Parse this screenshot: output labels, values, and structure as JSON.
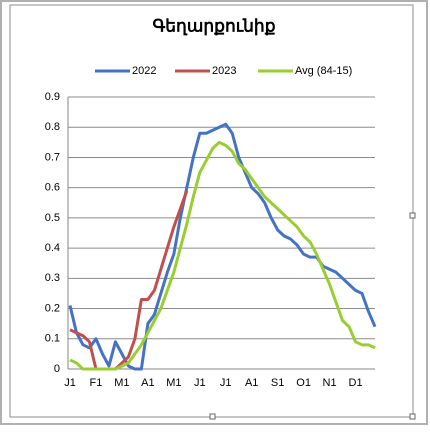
{
  "chart_data": {
    "type": "line",
    "title": "Գեղարքունիք",
    "categories": [
      "J1",
      null,
      null,
      null,
      "F1",
      null,
      null,
      null,
      "M1",
      null,
      null,
      null,
      "A1",
      null,
      null,
      null,
      "M1",
      null,
      null,
      null,
      "J1",
      null,
      null,
      null,
      "J1",
      null,
      null,
      null,
      "A1",
      null,
      null,
      null,
      "S1",
      null,
      null,
      null,
      "O1",
      null,
      null,
      null,
      "N1",
      null,
      null,
      null,
      "D1",
      null,
      null,
      null
    ],
    "series": [
      {
        "name": "2022",
        "color": "#4472c4",
        "values": [
          0.21,
          0.12,
          0.08,
          0.07,
          0.1,
          0.05,
          0.01,
          0.09,
          0.05,
          0.01,
          0.0,
          0.0,
          0.15,
          0.18,
          0.25,
          0.32,
          0.38,
          0.5,
          0.6,
          0.7,
          0.78,
          0.78,
          0.79,
          0.8,
          0.81,
          0.78,
          0.7,
          0.65,
          0.6,
          0.58,
          0.55,
          0.5,
          0.46,
          0.44,
          0.43,
          0.41,
          0.38,
          0.37,
          0.37,
          0.34,
          0.33,
          0.32,
          0.3,
          0.28,
          0.26,
          0.25,
          0.19,
          0.14
        ]
      },
      {
        "name": "2023",
        "color": "#c0504d",
        "values": [
          0.13,
          0.12,
          0.11,
          0.09,
          0.0,
          0.0,
          0.0,
          0.0,
          0.02,
          0.04,
          0.1,
          0.23,
          0.23,
          0.26,
          0.33,
          0.4,
          0.47,
          0.53,
          0.59,
          null,
          null,
          null,
          null,
          null,
          null,
          null,
          null,
          null,
          null,
          null,
          null,
          null,
          null,
          null,
          null,
          null,
          null,
          null,
          null,
          null,
          null,
          null,
          null,
          null,
          null,
          null,
          null,
          null
        ]
      },
      {
        "name": "Avg (84-15)",
        "color": "#9acd32",
        "values": [
          0.03,
          0.02,
          0.0,
          0.0,
          0.0,
          0.0,
          0.0,
          0.0,
          0.01,
          0.02,
          0.05,
          0.08,
          0.12,
          0.16,
          0.2,
          0.26,
          0.32,
          0.4,
          0.48,
          0.57,
          0.65,
          0.69,
          0.73,
          0.75,
          0.74,
          0.72,
          0.68,
          0.66,
          0.63,
          0.6,
          0.57,
          0.55,
          0.53,
          0.51,
          0.49,
          0.47,
          0.44,
          0.42,
          0.38,
          0.33,
          0.28,
          0.22,
          0.16,
          0.14,
          0.09,
          0.08,
          0.08,
          0.07
        ]
      }
    ],
    "ylim": [
      0,
      0.9
    ],
    "yticks": [
      0,
      0.1,
      0.2,
      0.3,
      0.4,
      0.5,
      0.6,
      0.7,
      0.8,
      0.9
    ],
    "grid": true,
    "legend": "top"
  }
}
